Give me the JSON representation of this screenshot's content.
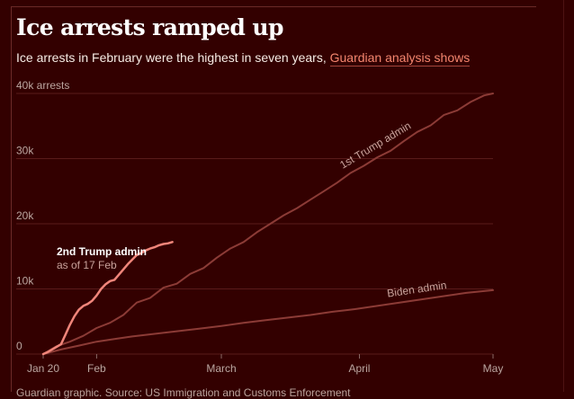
{
  "title": "Ice arrests ramped up",
  "subtitle": {
    "text": "Ice arrests in February were the highest in seven years,",
    "link_text": "Guardian analysis shows"
  },
  "source_note": "Guardian graphic. Source: US Immigration and Customs Enforcement",
  "colors": {
    "background": "#330000",
    "second_trump": "#f0857a",
    "first_trump": "#8c3b36",
    "biden": "#8c3b36",
    "grid": "#5a1b1a",
    "accent_link": "#f4866f"
  },
  "chart_data": {
    "type": "line",
    "title": "Ice arrests ramped up",
    "ylabel": "arrests",
    "ylim": [
      0,
      40000
    ],
    "yticks": [
      0,
      10000,
      20000,
      30000,
      40000
    ],
    "ytick_labels": [
      "0",
      "10k",
      "20k",
      "30k",
      "40k arrests"
    ],
    "xticks": [
      {
        "day": 0,
        "label": "Jan 20"
      },
      {
        "day": 12,
        "label": "Feb"
      },
      {
        "day": 40,
        "label": "March"
      },
      {
        "day": 71,
        "label": "April"
      },
      {
        "day": 101,
        "label": "May"
      }
    ],
    "xlim": [
      0,
      101
    ],
    "grid": true,
    "series": [
      {
        "name": "1st Trump admin",
        "label_day": 75,
        "x": [
          0,
          3,
          6,
          9,
          12,
          15,
          18,
          21,
          24,
          27,
          30,
          33,
          36,
          39,
          42,
          45,
          48,
          51,
          54,
          57,
          60,
          63,
          66,
          69,
          72,
          75,
          78,
          81,
          84,
          87,
          90,
          93,
          96,
          99,
          101
        ],
        "y": [
          0,
          1200,
          1900,
          2800,
          4000,
          4800,
          6000,
          7900,
          8600,
          10200,
          10800,
          12300,
          13200,
          14800,
          16200,
          17200,
          18700,
          20000,
          21300,
          22400,
          23700,
          25000,
          26300,
          27800,
          28900,
          30200,
          31200,
          32700,
          34100,
          35100,
          36700,
          37400,
          38700,
          39700,
          40000
        ]
      },
      {
        "name": "Biden admin",
        "label_day": 84,
        "x": [
          0,
          4,
          8,
          12,
          16,
          20,
          25,
          30,
          35,
          40,
          45,
          50,
          55,
          60,
          65,
          70,
          75,
          80,
          85,
          90,
          95,
          101
        ],
        "y": [
          0,
          700,
          1300,
          1900,
          2300,
          2700,
          3100,
          3500,
          3900,
          4300,
          4800,
          5200,
          5600,
          6000,
          6500,
          6900,
          7400,
          7900,
          8400,
          8900,
          9400,
          9800
        ]
      },
      {
        "name": "2nd Trump admin",
        "note": "as of 17 Feb",
        "x": [
          0,
          1,
          2,
          3,
          4,
          5,
          6,
          7,
          8,
          9,
          10,
          11,
          12,
          13,
          14,
          15,
          16,
          17,
          18,
          19,
          20,
          21,
          22,
          23,
          24,
          25,
          26,
          27,
          28,
          29
        ],
        "y": [
          0,
          300,
          700,
          1100,
          1500,
          3000,
          4500,
          5800,
          6800,
          7400,
          7700,
          8200,
          9000,
          10000,
          10700,
          11200,
          11400,
          12200,
          13000,
          13800,
          14500,
          15200,
          15500,
          15900,
          16200,
          16400,
          16700,
          16900,
          17000,
          17200
        ]
      }
    ],
    "annotations": {
      "second_trump_label": "2nd Trump admin",
      "second_trump_note": "as of 17 Feb",
      "first_trump_label": "1st Trump admin",
      "biden_label": "Biden admin"
    }
  }
}
